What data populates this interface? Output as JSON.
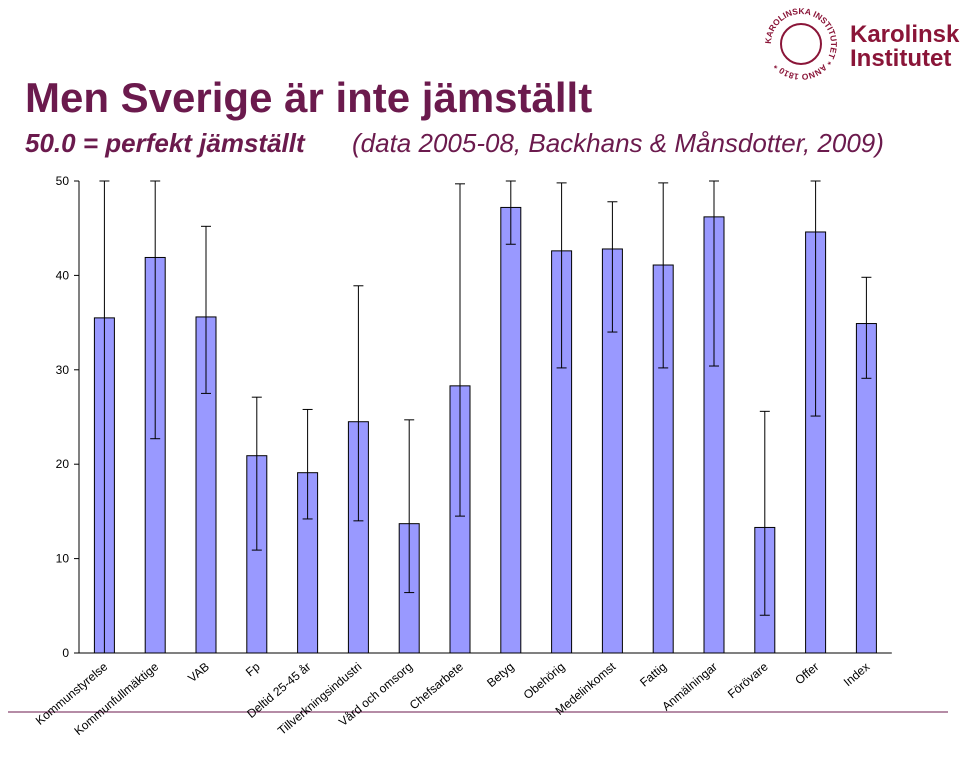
{
  "slide": {
    "title": "Men Sverige är inte jämställt",
    "subtitle": "50.0 = perfekt jämställt",
    "subtitle_note": "(data 2005-08, Backhans & Månsdotter, 2009)",
    "logo_text": [
      "Karolinska",
      "Institutet"
    ],
    "seal_text": "KAROLINSKA INSTITUTET * ANNO 1810 *"
  },
  "chart_data": {
    "type": "bar",
    "color": "#9999ff",
    "categories": [
      "Kommunstyrelse",
      "Kommunfullmäktige",
      "VAB",
      "Fp",
      "Deltid 25-45 år",
      "Tillverkningsindustri",
      "Vård och omsorg",
      "Chefsarbete",
      "Betyg",
      "Obehörig",
      "Medelinkomst",
      "Fattig",
      "Anmälningar",
      "Förövare",
      "Offer",
      "Index"
    ],
    "values": [
      35.5,
      41.9,
      35.6,
      20.9,
      19.1,
      24.5,
      13.7,
      28.3,
      47.2,
      42.6,
      42.8,
      41.1,
      46.2,
      13.3,
      44.6,
      34.9
    ],
    "error_low": [
      0,
      22.7,
      27.5,
      10.9,
      14.2,
      14.0,
      6.4,
      14.5,
      43.3,
      30.2,
      34.0,
      30.2,
      30.4,
      4.0,
      25.1,
      29.1
    ],
    "error_high": [
      50,
      50,
      45.2,
      27.1,
      25.8,
      38.9,
      24.7,
      49.7,
      50,
      49.8,
      47.8,
      49.8,
      50,
      25.6,
      50,
      39.8
    ],
    "ylim": [
      0,
      50
    ],
    "yticks": [
      0,
      10,
      20,
      30,
      40,
      50
    ]
  }
}
